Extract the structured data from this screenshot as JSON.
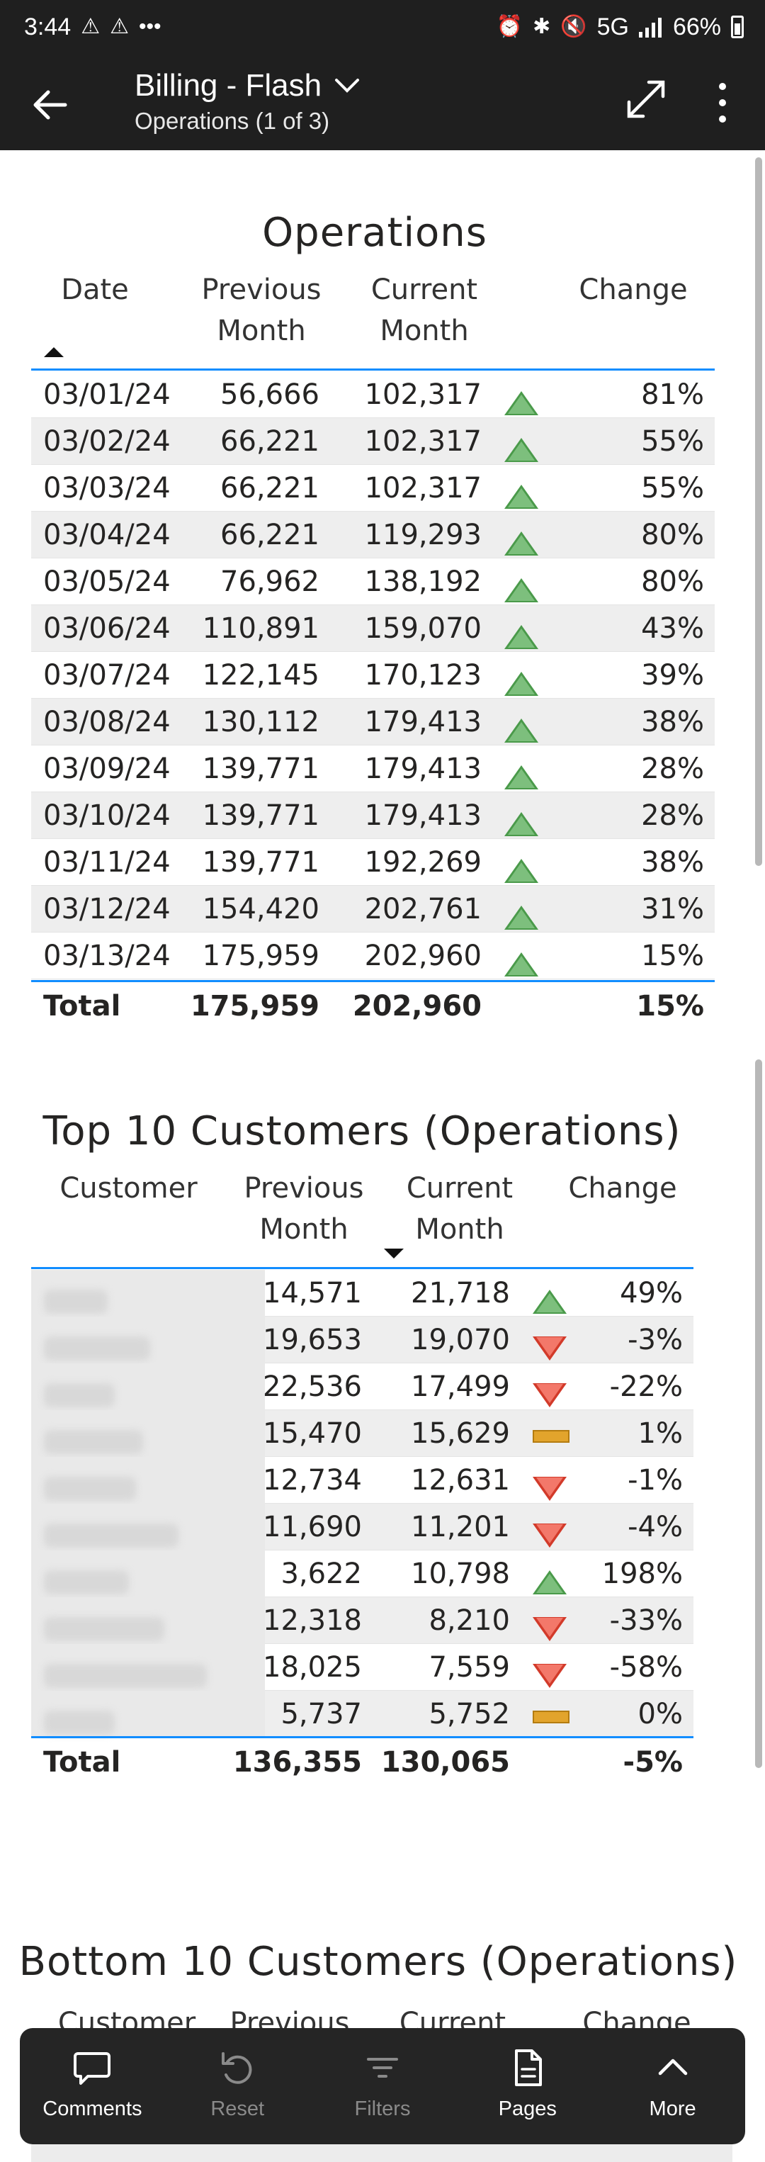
{
  "status_bar": {
    "time": "3:44",
    "network": "5G",
    "battery": "66%"
  },
  "app_bar": {
    "title": "Billing - Flash",
    "subtitle": "Operations (1 of 3)"
  },
  "operations": {
    "title": "Operations",
    "headers": {
      "date": "Date",
      "prev_1": "Previous",
      "prev_2": "Month",
      "curr_1": "Current",
      "curr_2": "Month",
      "change": "Change"
    },
    "rows": [
      {
        "date": "03/01/24",
        "prev": "56,666",
        "curr": "102,317",
        "dir": "up",
        "change": "81%"
      },
      {
        "date": "03/02/24",
        "prev": "66,221",
        "curr": "102,317",
        "dir": "up",
        "change": "55%"
      },
      {
        "date": "03/03/24",
        "prev": "66,221",
        "curr": "102,317",
        "dir": "up",
        "change": "55%"
      },
      {
        "date": "03/04/24",
        "prev": "66,221",
        "curr": "119,293",
        "dir": "up",
        "change": "80%"
      },
      {
        "date": "03/05/24",
        "prev": "76,962",
        "curr": "138,192",
        "dir": "up",
        "change": "80%"
      },
      {
        "date": "03/06/24",
        "prev": "110,891",
        "curr": "159,070",
        "dir": "up",
        "change": "43%"
      },
      {
        "date": "03/07/24",
        "prev": "122,145",
        "curr": "170,123",
        "dir": "up",
        "change": "39%"
      },
      {
        "date": "03/08/24",
        "prev": "130,112",
        "curr": "179,413",
        "dir": "up",
        "change": "38%"
      },
      {
        "date": "03/09/24",
        "prev": "139,771",
        "curr": "179,413",
        "dir": "up",
        "change": "28%"
      },
      {
        "date": "03/10/24",
        "prev": "139,771",
        "curr": "179,413",
        "dir": "up",
        "change": "28%"
      },
      {
        "date": "03/11/24",
        "prev": "139,771",
        "curr": "192,269",
        "dir": "up",
        "change": "38%"
      },
      {
        "date": "03/12/24",
        "prev": "154,420",
        "curr": "202,761",
        "dir": "up",
        "change": "31%"
      },
      {
        "date": "03/13/24",
        "prev": "175,959",
        "curr": "202,960",
        "dir": "up",
        "change": "15%"
      }
    ],
    "total": {
      "label": "Total",
      "prev": "175,959",
      "curr": "202,960",
      "change": "15%"
    }
  },
  "top_customers": {
    "title": "Top 10 Customers (Operations)",
    "headers": {
      "customer": "Customer",
      "prev_1": "Previous",
      "prev_2": "Month",
      "curr_1": "Current",
      "curr_2": "Month",
      "change": "Change"
    },
    "rows": [
      {
        "prev": "14,571",
        "curr": "21,718",
        "dir": "up",
        "change": "49%"
      },
      {
        "prev": "19,653",
        "curr": "19,070",
        "dir": "down",
        "change": "-3%"
      },
      {
        "prev": "22,536",
        "curr": "17,499",
        "dir": "down",
        "change": "-22%"
      },
      {
        "prev": "15,470",
        "curr": "15,629",
        "dir": "flat",
        "change": "1%"
      },
      {
        "prev": "12,734",
        "curr": "12,631",
        "dir": "down",
        "change": "-1%"
      },
      {
        "prev": "11,690",
        "curr": "11,201",
        "dir": "down",
        "change": "-4%"
      },
      {
        "prev": "3,622",
        "curr": "10,798",
        "dir": "up",
        "change": "198%"
      },
      {
        "prev": "12,318",
        "curr": "8,210",
        "dir": "down",
        "change": "-33%"
      },
      {
        "prev": "18,025",
        "curr": "7,559",
        "dir": "down",
        "change": "-58%"
      },
      {
        "prev": "5,737",
        "curr": "5,752",
        "dir": "flat",
        "change": "0%"
      }
    ],
    "total": {
      "label": "Total",
      "prev": "136,355",
      "curr": "130,065",
      "change": "-5%"
    }
  },
  "bottom_customers": {
    "title": "Bottom 10 Customers (Operations)",
    "headers": {
      "customer": "Customer",
      "prev_1": "Previous",
      "curr_1": "Current",
      "change": "Change"
    }
  },
  "toolbar": {
    "comments": "Comments",
    "reset": "Reset",
    "filters": "Filters",
    "pages": "Pages",
    "more": "More"
  }
}
